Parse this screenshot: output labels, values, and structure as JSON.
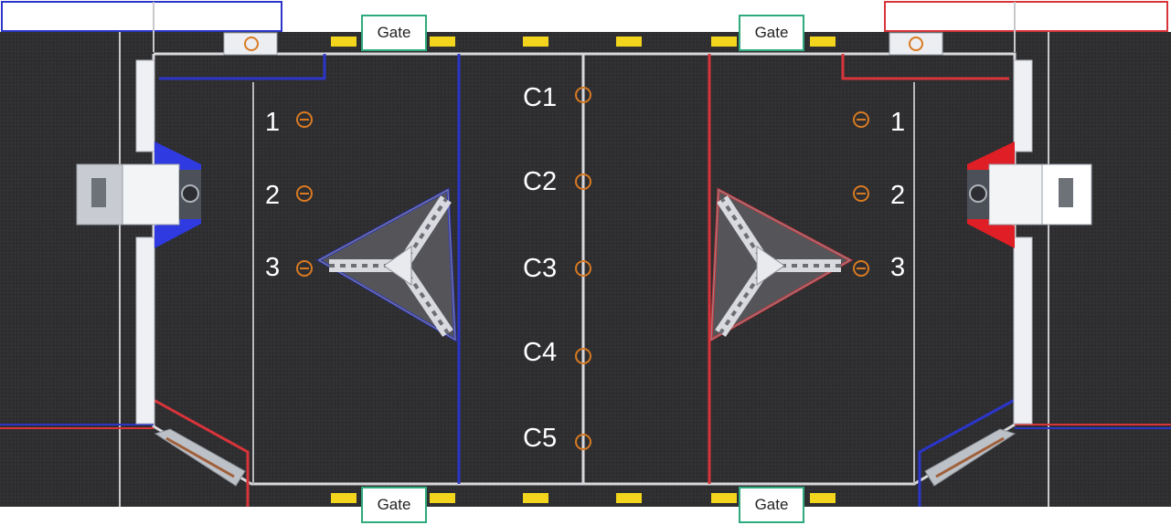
{
  "gates": {
    "top_left": "Gate",
    "top_right": "Gate",
    "bottom_left": "Gate",
    "bottom_right": "Gate"
  },
  "center_markers": [
    "C1",
    "C2",
    "C3",
    "C4",
    "C5"
  ],
  "blue_side_markers": [
    "1",
    "2",
    "3"
  ],
  "red_side_markers": [
    "1",
    "2",
    "3"
  ],
  "colors": {
    "carpet": "#2f2f31",
    "blue_alliance": "#2b35c8",
    "red_alliance": "#d9343a",
    "gate_border": "#2eaa7c",
    "marker": "#d97a22",
    "pad": "#f2d51c",
    "wall": "#d8d8dc"
  }
}
